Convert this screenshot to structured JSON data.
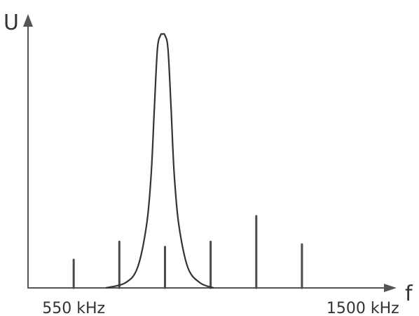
{
  "chart_data": {
    "type": "line",
    "title": "",
    "ylabel": "U",
    "xlabel": "f",
    "tick_labels": [
      {
        "value": 550,
        "text": "550 kHz"
      },
      {
        "value": 1500,
        "text": "1500 kHz"
      }
    ],
    "xlim": [
      400,
      1680
    ],
    "ylim": [
      0,
      1
    ],
    "grid": false,
    "series": [
      {
        "kind": "spectral-lines",
        "x": [
          550,
          700,
          850,
          1000,
          1150,
          1300
        ],
        "values": [
          0.11,
          0.18,
          0.16,
          0.18,
          0.28,
          0.17
        ]
      },
      {
        "kind": "resonance-curve",
        "center": 842,
        "peak": 0.99,
        "x": [
          655,
          720,
          760,
          790,
          805,
          815,
          825,
          835,
          842,
          850,
          860,
          870,
          880,
          895,
          925,
          965,
          1010
        ],
        "values": [
          0.0,
          0.02,
          0.08,
          0.25,
          0.45,
          0.7,
          0.93,
          0.985,
          0.99,
          0.985,
          0.93,
          0.7,
          0.45,
          0.25,
          0.08,
          0.02,
          0.0
        ]
      }
    ],
    "colors": {
      "axis": "#555555",
      "lines": "#4a4a4a",
      "curve": "#333333"
    }
  }
}
